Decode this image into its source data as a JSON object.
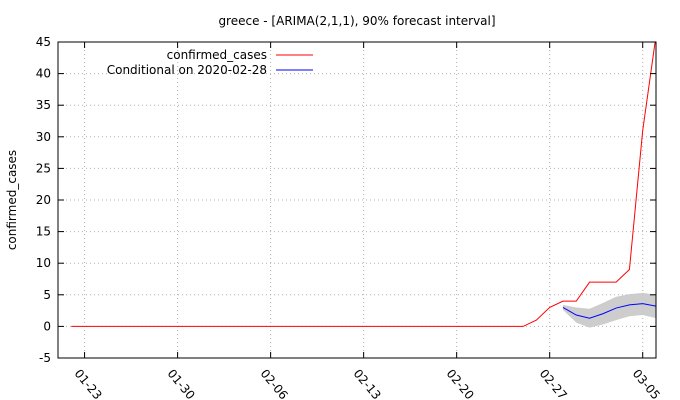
{
  "chart_data": {
    "type": "line",
    "title": "greece -  [ARIMA(2,1,1), 90% forecast interval]",
    "xlabel": "",
    "ylabel": "confirmed_cases",
    "ylim": [
      -5,
      45
    ],
    "xlim": [
      "2020-01-21",
      "2020-03-06"
    ],
    "grid": true,
    "legend_position": "top-left",
    "x_ticks": [
      "2020-01-23",
      "2020-01-30",
      "2020-02-06",
      "2020-02-13",
      "2020-02-20",
      "2020-02-27",
      "2020-03-05"
    ],
    "x_tick_labels": [
      "01-23",
      "01-30",
      "02-06",
      "02-13",
      "02-20",
      "02-27",
      "03-05"
    ],
    "y_ticks": [
      -5,
      0,
      5,
      10,
      15,
      20,
      25,
      30,
      35,
      40,
      45
    ],
    "series": [
      {
        "name": "confirmed_cases",
        "color": "#ff0000",
        "x": [
          "2020-01-22",
          "2020-01-23",
          "2020-01-24",
          "2020-01-25",
          "2020-01-26",
          "2020-01-27",
          "2020-01-28",
          "2020-01-29",
          "2020-01-30",
          "2020-01-31",
          "2020-02-01",
          "2020-02-02",
          "2020-02-03",
          "2020-02-04",
          "2020-02-05",
          "2020-02-06",
          "2020-02-07",
          "2020-02-08",
          "2020-02-09",
          "2020-02-10",
          "2020-02-11",
          "2020-02-12",
          "2020-02-13",
          "2020-02-14",
          "2020-02-15",
          "2020-02-16",
          "2020-02-17",
          "2020-02-18",
          "2020-02-19",
          "2020-02-20",
          "2020-02-21",
          "2020-02-22",
          "2020-02-23",
          "2020-02-24",
          "2020-02-25",
          "2020-02-26",
          "2020-02-27",
          "2020-02-28",
          "2020-02-29",
          "2020-03-01",
          "2020-03-02",
          "2020-03-03",
          "2020-03-04",
          "2020-03-05",
          "2020-03-06"
        ],
        "y": [
          0,
          0,
          0,
          0,
          0,
          0,
          0,
          0,
          0,
          0,
          0,
          0,
          0,
          0,
          0,
          0,
          0,
          0,
          0,
          0,
          0,
          0,
          0,
          0,
          0,
          0,
          0,
          0,
          0,
          0,
          0,
          0,
          0,
          0,
          0,
          1,
          3,
          4,
          4,
          7,
          7,
          7,
          9,
          31,
          46
        ]
      },
      {
        "name": "Conditional on 2020-02-28",
        "color": "#0000ff",
        "x": [
          "2020-02-28",
          "2020-02-29",
          "2020-03-01",
          "2020-03-02",
          "2020-03-03",
          "2020-03-04",
          "2020-03-05",
          "2020-03-06"
        ],
        "y": [
          3.0,
          1.8,
          1.3,
          2.0,
          2.9,
          3.4,
          3.6,
          3.2
        ],
        "lower": [
          2.6,
          0.6,
          -0.2,
          0.3,
          1.0,
          1.6,
          1.8,
          1.3
        ],
        "upper": [
          3.4,
          3.0,
          2.8,
          3.7,
          4.7,
          5.1,
          5.3,
          5.0
        ],
        "band_color": "#c8c8c8"
      }
    ]
  }
}
